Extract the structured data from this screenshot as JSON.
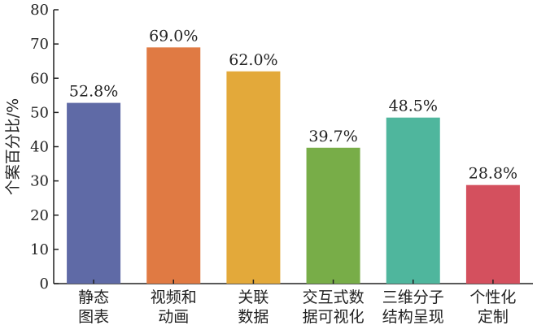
{
  "chart_data": {
    "type": "bar",
    "categories": [
      [
        "静态",
        "图表"
      ],
      [
        "视频和",
        "动画"
      ],
      [
        "关联",
        "数据"
      ],
      [
        "交互式数",
        "据可视化"
      ],
      [
        "三维分子",
        "结构呈现"
      ],
      [
        "个性化",
        "定制"
      ]
    ],
    "values": [
      52.8,
      69.0,
      62.0,
      39.7,
      48.5,
      28.8
    ],
    "data_labels": [
      "52.8%",
      "69.0%",
      "62.0%",
      "39.7%",
      "48.5%",
      "28.8%"
    ],
    "colors": [
      "#5f6aa6",
      "#e07a43",
      "#e3a93a",
      "#78ad48",
      "#4fb69d",
      "#d4505e"
    ],
    "ylabel": "个案百分比/%",
    "ylim": [
      0,
      80
    ],
    "yticks": [
      0,
      10,
      20,
      30,
      40,
      50,
      60,
      70,
      80
    ],
    "ytick_labels": [
      "0",
      "10",
      "20",
      "30",
      "40",
      "50",
      "60",
      "70",
      "80"
    ],
    "grid": false,
    "legend": "none"
  }
}
